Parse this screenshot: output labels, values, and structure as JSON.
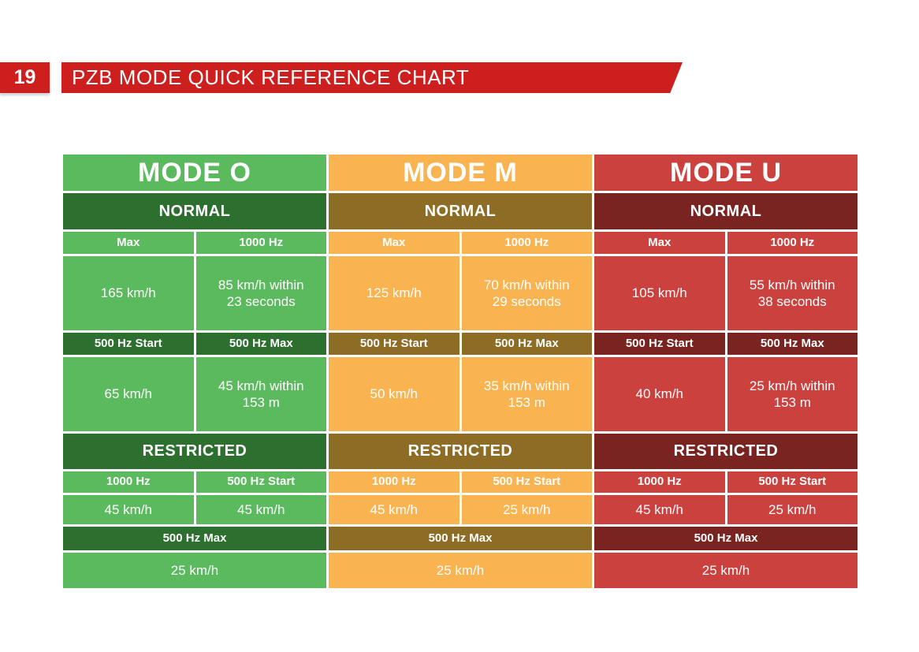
{
  "header": {
    "page_number": "19",
    "title": "PZB MODE QUICK REFERENCE CHART",
    "accent_color": "#ce1f1f"
  },
  "chart_data": {
    "type": "table",
    "title": "PZB MODE QUICK REFERENCE CHART",
    "modes": [
      {
        "title": "MODE O",
        "light": "#5bb95e",
        "dark": "#2d6f2f",
        "normal_label": "NORMAL",
        "normal_cols": [
          "Max",
          "1000 Hz"
        ],
        "normal_row1": [
          "165 km/h",
          "85 km/h within\n23 seconds"
        ],
        "normal_cols2": [
          "500 Hz Start",
          "500 Hz Max"
        ],
        "normal_row2": [
          "65 km/h",
          "45 km/h within\n153 m"
        ],
        "restricted_label": "RESTRICTED",
        "restricted_cols": [
          "1000 Hz",
          "500 Hz Start"
        ],
        "restricted_row": [
          "45 km/h",
          "45 km/h"
        ],
        "restricted_full_header": "500 Hz Max",
        "restricted_full_value": "25 km/h"
      },
      {
        "title": "MODE M",
        "light": "#f9b451",
        "dark": "#8d6c26",
        "normal_label": "NORMAL",
        "normal_cols": [
          "Max",
          "1000 Hz"
        ],
        "normal_row1": [
          "125 km/h",
          "70 km/h within\n29 seconds"
        ],
        "normal_cols2": [
          "500 Hz Start",
          "500 Hz Max"
        ],
        "normal_row2": [
          "50 km/h",
          "35 km/h within\n153 m"
        ],
        "restricted_label": "RESTRICTED",
        "restricted_cols": [
          "1000 Hz",
          "500 Hz Start"
        ],
        "restricted_row": [
          "45 km/h",
          "25 km/h"
        ],
        "restricted_full_header": "500 Hz Max",
        "restricted_full_value": "25 km/h"
      },
      {
        "title": "MODE U",
        "light": "#ca413e",
        "dark": "#7a2421",
        "normal_label": "NORMAL",
        "normal_cols": [
          "Max",
          "1000 Hz"
        ],
        "normal_row1": [
          "105 km/h",
          "55 km/h within\n38 seconds"
        ],
        "normal_cols2": [
          "500 Hz Start",
          "500 Hz Max"
        ],
        "normal_row2": [
          "40 km/h",
          "25 km/h within\n153 m"
        ],
        "restricted_label": "RESTRICTED",
        "restricted_cols": [
          "1000 Hz",
          "500 Hz Start"
        ],
        "restricted_row": [
          "45 km/h",
          "25 km/h"
        ],
        "restricted_full_header": "500 Hz Max",
        "restricted_full_value": "25 km/h"
      }
    ]
  }
}
